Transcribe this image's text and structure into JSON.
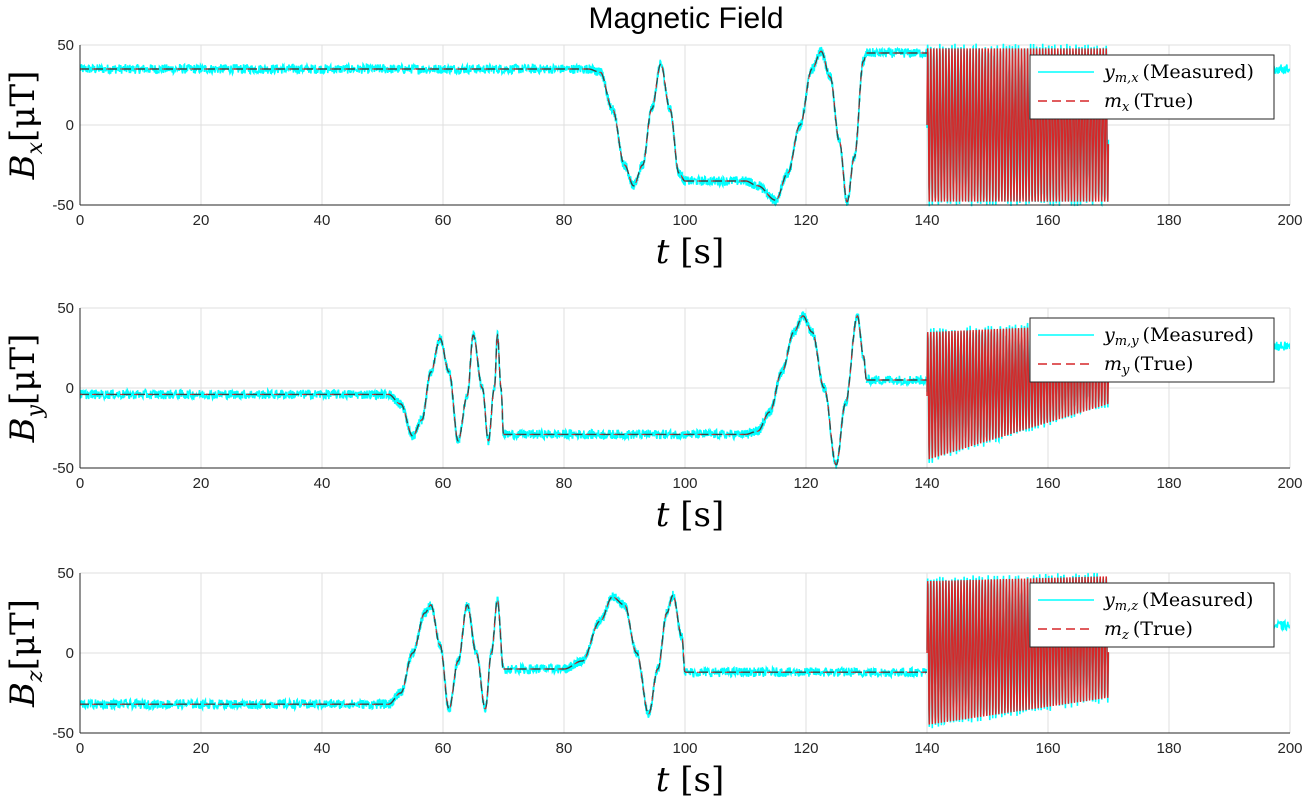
{
  "figure": {
    "title": "Magnetic Field"
  },
  "colors": {
    "measured": "#00ffff",
    "true_dashed": "#d62728",
    "true_dark": "#444444",
    "grid": "#dfdfdf"
  },
  "chart_data": [
    {
      "type": "line",
      "id": "bx",
      "ylabel": {
        "symbol": "B",
        "sub": "x",
        "unit": "[μT]"
      },
      "xlabel": {
        "symbol": "t",
        "unit": "[s]"
      },
      "xlim": [
        0,
        200
      ],
      "ylim": [
        -50,
        50
      ],
      "xticks": [
        0,
        20,
        40,
        60,
        80,
        100,
        120,
        140,
        160,
        180,
        200
      ],
      "yticks": [
        50,
        0,
        -50
      ],
      "legend_position": "top-right",
      "series": [
        {
          "name": "y_{m,x} (Measured)",
          "legend_sym": "y",
          "legend_sub": "m,x",
          "legend_text": "(Measured)",
          "noise": 3
        },
        {
          "name": "m_x (True)",
          "legend_sym": "m",
          "legend_sub": "x",
          "legend_text": "(True)"
        }
      ],
      "segments": [
        {
          "kind": "const",
          "t": [
            0,
            84
          ],
          "v": 35
        },
        {
          "kind": "path",
          "t": [
            84,
            100
          ],
          "points": [
            [
              84,
              35
            ],
            [
              86,
              33
            ],
            [
              88,
              10
            ],
            [
              90,
              -25
            ],
            [
              91.5,
              -38
            ],
            [
              93,
              -25
            ],
            [
              94.5,
              10
            ],
            [
              96,
              38
            ],
            [
              97.5,
              10
            ],
            [
              99,
              -30
            ],
            [
              100,
              -35
            ]
          ]
        },
        {
          "kind": "const",
          "t": [
            100,
            110
          ],
          "v": -35
        },
        {
          "kind": "path",
          "t": [
            110,
            130
          ],
          "points": [
            [
              110,
              -35
            ],
            [
              112,
              -38
            ],
            [
              115,
              -47
            ],
            [
              117,
              -30
            ],
            [
              119,
              0
            ],
            [
              121,
              35
            ],
            [
              122.5,
              46
            ],
            [
              124,
              30
            ],
            [
              125.5,
              -10
            ],
            [
              126.8,
              -48
            ],
            [
              128,
              -20
            ],
            [
              129.5,
              40
            ],
            [
              130,
              44
            ]
          ]
        },
        {
          "kind": "const",
          "t": [
            130,
            140
          ],
          "v": 45
        },
        {
          "kind": "osc",
          "t": [
            140,
            170
          ],
          "center": [
            0,
            0
          ],
          "amp": [
            48,
            48
          ],
          "period": 0.5
        },
        {
          "kind": "const",
          "t": [
            197,
            200
          ],
          "v": 35,
          "measured_only": true
        }
      ]
    },
    {
      "type": "line",
      "id": "by",
      "ylabel": {
        "symbol": "B",
        "sub": "y",
        "unit": "[μT]"
      },
      "xlabel": {
        "symbol": "t",
        "unit": "[s]"
      },
      "xlim": [
        0,
        200
      ],
      "ylim": [
        -50,
        50
      ],
      "xticks": [
        0,
        20,
        40,
        60,
        80,
        100,
        120,
        140,
        160,
        180,
        200
      ],
      "yticks": [
        50,
        0,
        -50
      ],
      "legend_position": "top-right",
      "series": [
        {
          "name": "y_{m,y} (Measured)",
          "legend_sym": "y",
          "legend_sub": "m,y",
          "legend_text": "(Measured)",
          "noise": 3
        },
        {
          "name": "m_y (True)",
          "legend_sym": "m",
          "legend_sub": "y",
          "legend_text": "(True)"
        }
      ],
      "segments": [
        {
          "kind": "const",
          "t": [
            0,
            51
          ],
          "v": -4
        },
        {
          "kind": "path",
          "t": [
            51,
            70
          ],
          "points": [
            [
              51,
              -4
            ],
            [
              53,
              -10
            ],
            [
              55,
              -30
            ],
            [
              56.5,
              -20
            ],
            [
              58,
              10
            ],
            [
              59.5,
              31
            ],
            [
              61,
              10
            ],
            [
              62.5,
              -33
            ],
            [
              64,
              -5
            ],
            [
              65,
              33
            ],
            [
              66.5,
              0
            ],
            [
              67.5,
              -33
            ],
            [
              68.5,
              0
            ],
            [
              69,
              33
            ],
            [
              69.6,
              0
            ],
            [
              70,
              -29
            ]
          ]
        },
        {
          "kind": "const",
          "t": [
            70,
            110
          ],
          "v": -29
        },
        {
          "kind": "path",
          "t": [
            110,
            130
          ],
          "points": [
            [
              110,
              -29
            ],
            [
              112,
              -27
            ],
            [
              114,
              -15
            ],
            [
              116,
              10
            ],
            [
              118,
              35
            ],
            [
              119.5,
              45
            ],
            [
              121,
              35
            ],
            [
              123,
              0
            ],
            [
              125,
              -48
            ],
            [
              126.5,
              -10
            ],
            [
              128.5,
              45
            ],
            [
              129.5,
              20
            ],
            [
              130,
              5
            ]
          ]
        },
        {
          "kind": "const",
          "t": [
            130,
            140
          ],
          "v": 5
        },
        {
          "kind": "osc",
          "t": [
            140,
            170
          ],
          "center": [
            -5,
            15
          ],
          "amp": [
            40,
            25
          ],
          "period": 0.5
        },
        {
          "kind": "const",
          "t": [
            197,
            200
          ],
          "v": 26,
          "measured_only": true
        }
      ]
    },
    {
      "type": "line",
      "id": "bz",
      "ylabel": {
        "symbol": "B",
        "sub": "z",
        "unit": "[μT]"
      },
      "xlabel": {
        "symbol": "t",
        "unit": "[s]"
      },
      "xlim": [
        0,
        200
      ],
      "ylim": [
        -50,
        50
      ],
      "xticks": [
        0,
        20,
        40,
        60,
        80,
        100,
        120,
        140,
        160,
        180,
        200
      ],
      "yticks": [
        50,
        0,
        -50
      ],
      "legend_position": "top-right",
      "series": [
        {
          "name": "y_{m,z} (Measured)",
          "legend_sym": "y",
          "legend_sub": "m,z",
          "legend_text": "(Measured)",
          "noise": 3
        },
        {
          "name": "m_z (True)",
          "legend_sym": "m",
          "legend_sub": "z",
          "legend_text": "(True)"
        }
      ],
      "segments": [
        {
          "kind": "const",
          "t": [
            0,
            51
          ],
          "v": -32
        },
        {
          "kind": "path",
          "t": [
            51,
            70
          ],
          "points": [
            [
              51,
              -32
            ],
            [
              53,
              -25
            ],
            [
              55,
              0
            ],
            [
              57,
              25
            ],
            [
              58,
              30
            ],
            [
              59.5,
              5
            ],
            [
              61,
              -35
            ],
            [
              62.5,
              -5
            ],
            [
              64,
              30
            ],
            [
              65.5,
              0
            ],
            [
              67,
              -35
            ],
            [
              68,
              0
            ],
            [
              69,
              33
            ],
            [
              70,
              -10
            ]
          ]
        },
        {
          "kind": "const",
          "t": [
            70,
            80
          ],
          "v": -10
        },
        {
          "kind": "path",
          "t": [
            80,
            100
          ],
          "points": [
            [
              80,
              -10
            ],
            [
              83,
              -5
            ],
            [
              86,
              20
            ],
            [
              88,
              35
            ],
            [
              90,
              30
            ],
            [
              92,
              0
            ],
            [
              94,
              -38
            ],
            [
              95.5,
              -10
            ],
            [
              97,
              25
            ],
            [
              98,
              36
            ],
            [
              99.5,
              10
            ],
            [
              100,
              -12
            ]
          ]
        },
        {
          "kind": "const",
          "t": [
            100,
            140
          ],
          "v": -12
        },
        {
          "kind": "osc",
          "t": [
            140,
            170
          ],
          "center": [
            0,
            10
          ],
          "amp": [
            45,
            38
          ],
          "period": 0.5
        },
        {
          "kind": "const",
          "t": [
            197,
            200
          ],
          "v": 17,
          "measured_only": true
        }
      ]
    }
  ]
}
